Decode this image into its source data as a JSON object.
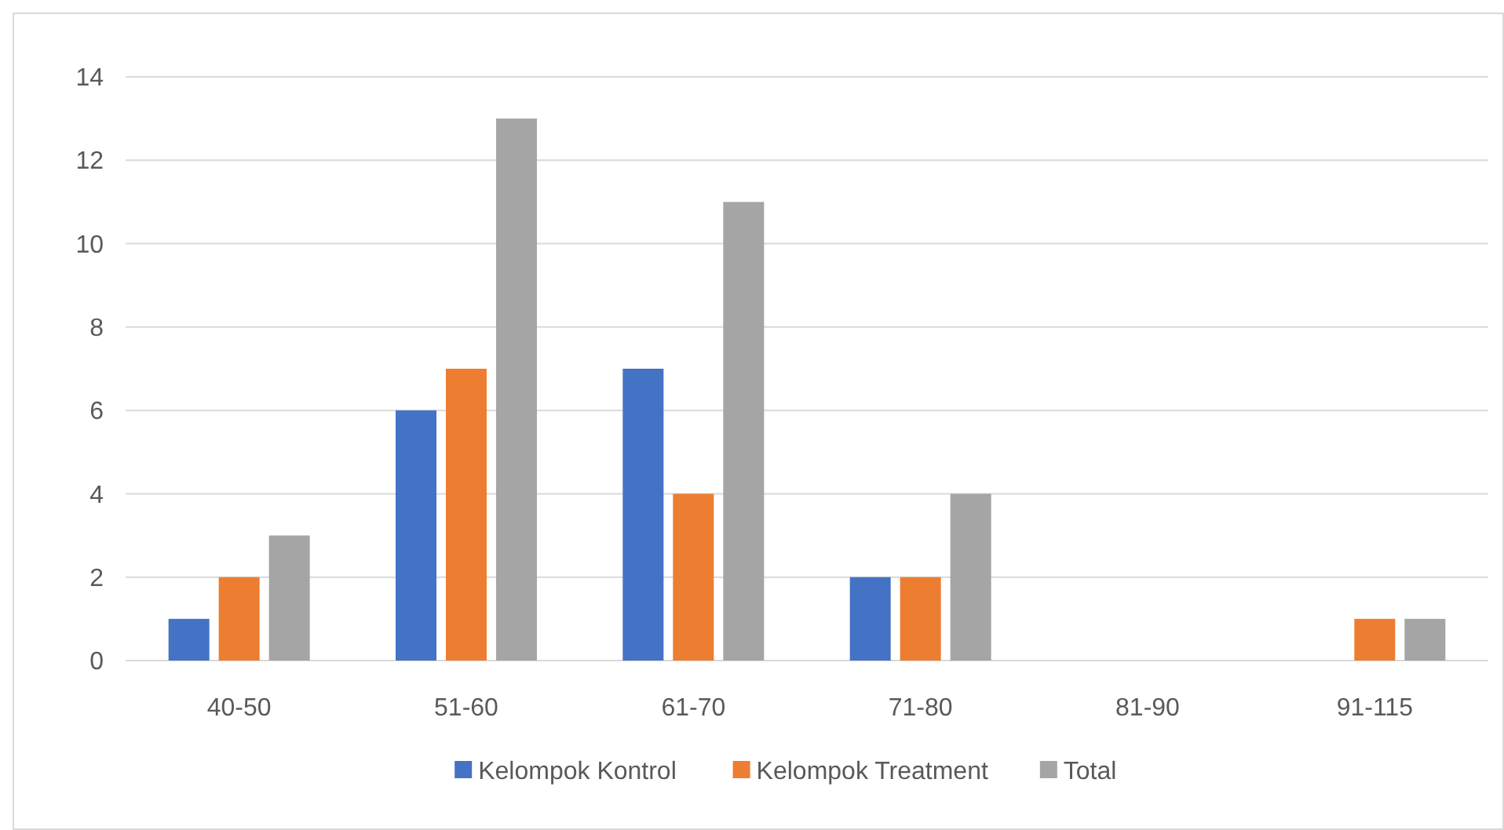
{
  "chart_data": {
    "type": "bar",
    "categories": [
      "40-50",
      "51-60",
      "61-70",
      "71-80",
      "81-90",
      "91-115"
    ],
    "series": [
      {
        "name": "Kelompok Kontrol",
        "color": "#4472c4",
        "values": [
          1,
          6,
          7,
          2,
          0,
          0
        ]
      },
      {
        "name": "Kelompok Treatment",
        "color": "#ed7d31",
        "values": [
          2,
          7,
          4,
          2,
          0,
          1
        ]
      },
      {
        "name": "Total",
        "color": "#a5a5a5",
        "values": [
          3,
          13,
          11,
          4,
          0,
          1
        ]
      }
    ],
    "ylim": [
      0,
      14
    ],
    "yticks": [
      0,
      2,
      4,
      6,
      8,
      10,
      12,
      14
    ],
    "grid": "y",
    "legend": "bottom"
  }
}
